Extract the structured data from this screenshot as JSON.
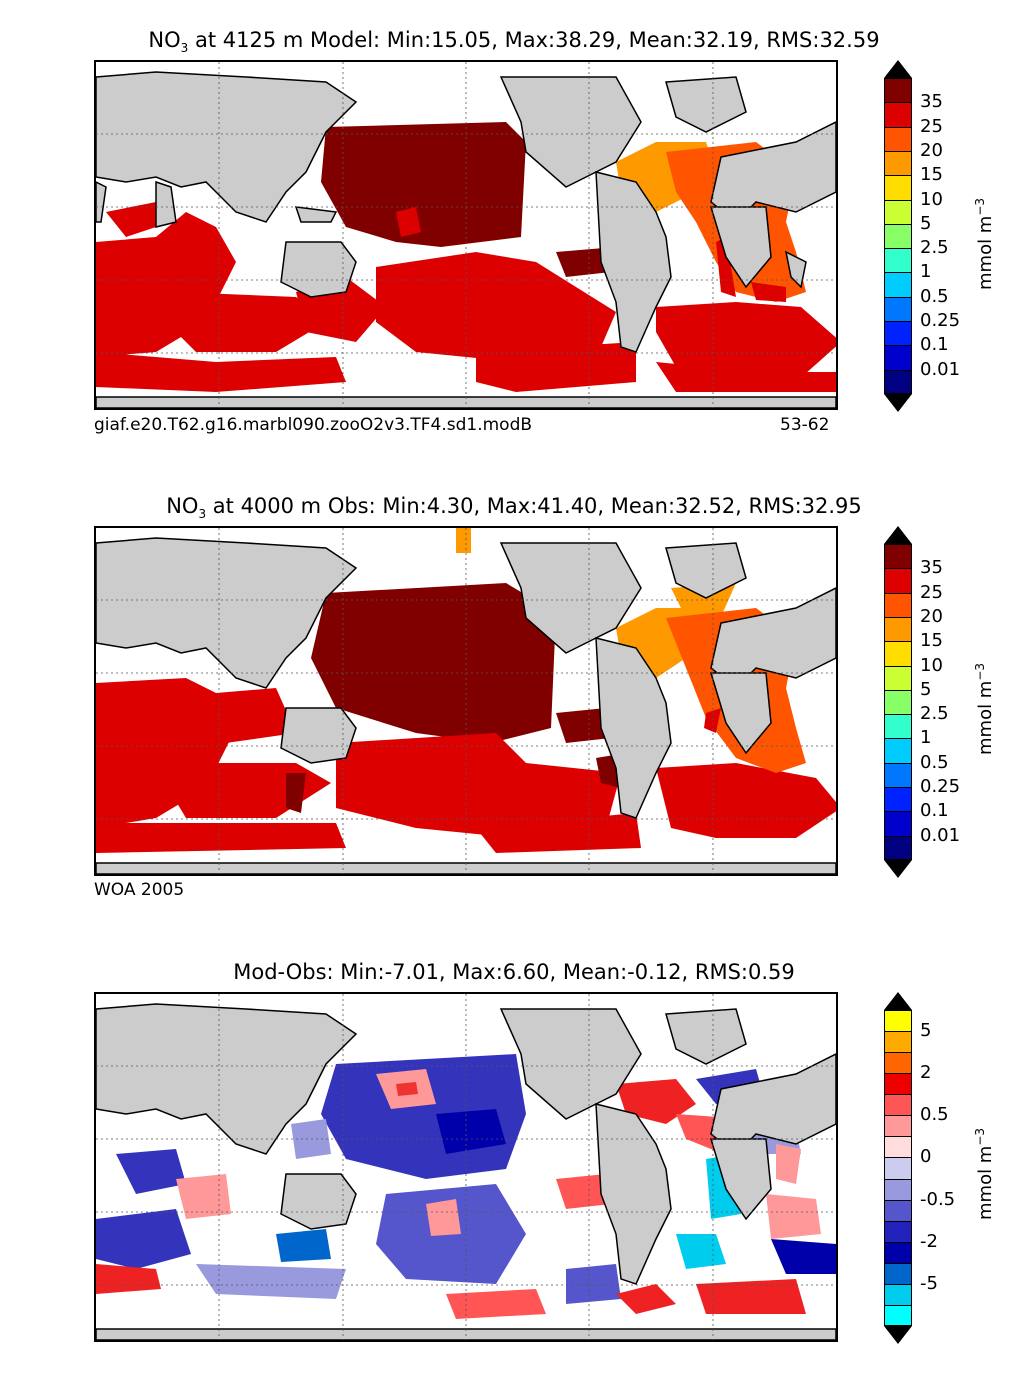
{
  "panels": [
    {
      "title_prefix": "NO",
      "title_sub": "3",
      "title_rest": " at 4125 m Model: Min:15.05, Max:38.29, Mean:32.19, RMS:32.59",
      "note_left": "giaf.e20.T62.g16.marbl090.zooO2v3.TF4.sd1.modB",
      "note_right": "53-62",
      "colorbar": {
        "unit": "mmol m",
        "unit_sup": "−3",
        "colors": [
          "#000080",
          "#0000cc",
          "#0022ff",
          "#0077ff",
          "#00ccff",
          "#33ffcc",
          "#88ff66",
          "#ccff33",
          "#ffdd00",
          "#ff9900",
          "#ff5500",
          "#dd0000",
          "#800000"
        ],
        "labels": [
          "0.01",
          "0.1",
          "0.25",
          "0.5",
          "1",
          "2.5",
          "5",
          "10",
          "15",
          "20",
          "25",
          "35"
        ]
      }
    },
    {
      "title_prefix": "NO",
      "title_sub": "3",
      "title_rest": " at 4000 m Obs: Min:4.30, Max:41.40, Mean:32.52, RMS:32.95",
      "note_left": "WOA 2005",
      "note_right": "",
      "colorbar": {
        "unit": "mmol m",
        "unit_sup": "−3",
        "colors": [
          "#000080",
          "#0000cc",
          "#0022ff",
          "#0077ff",
          "#00ccff",
          "#33ffcc",
          "#88ff66",
          "#ccff33",
          "#ffdd00",
          "#ff9900",
          "#ff5500",
          "#dd0000",
          "#800000"
        ],
        "labels": [
          "0.01",
          "0.1",
          "0.25",
          "0.5",
          "1",
          "2.5",
          "5",
          "10",
          "15",
          "20",
          "25",
          "35"
        ]
      }
    },
    {
      "title_prefix": "",
      "title_sub": "",
      "title_rest": "Mod-Obs: Min:-7.01, Max:6.60, Mean:-0.12, RMS:0.59",
      "note_left": "",
      "note_right": "",
      "colorbar": {
        "unit": "mmol m",
        "unit_sup": "−3",
        "colors": [
          "#00ffff",
          "#00ccee",
          "#0066cc",
          "#0000aa",
          "#2222bb",
          "#5555cc",
          "#9999dd",
          "#ccccee",
          "#ffdddd",
          "#ff9999",
          "#ff5555",
          "#ee0000",
          "#ff6600",
          "#ffaa00",
          "#ffff00"
        ],
        "labels": [
          "-5",
          "-2",
          "-0.5",
          "0",
          "0.5",
          "2",
          "5"
        ]
      }
    }
  ],
  "colors": {
    "land": "#cccccc",
    "ocean_missing": "#ffffff",
    "coast": "#000000"
  }
}
